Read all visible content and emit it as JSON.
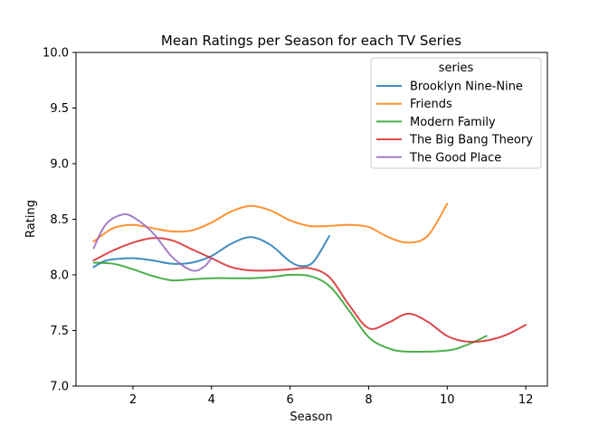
{
  "chart_data": {
    "type": "line",
    "title": "Mean Ratings per Season for each TV Series",
    "xlabel": "Season",
    "ylabel": "Rating",
    "xlim": [
      0.55,
      12.55
    ],
    "ylim": [
      7.0,
      10.0
    ],
    "xticks": [
      "2",
      "4",
      "6",
      "8",
      "10",
      "12"
    ],
    "yticks": [
      "7.0",
      "7.5",
      "8.0",
      "8.5",
      "9.0",
      "9.5",
      "10.0"
    ],
    "grid": false,
    "legend": {
      "title": "series",
      "placement": "top-right"
    },
    "series": [
      {
        "name": "Brooklyn Nine-Nine",
        "color": "#1f77b4",
        "points": [
          [
            1,
            8.07
          ],
          [
            1.25,
            8.12
          ],
          [
            1.5,
            8.14
          ],
          [
            2,
            8.15
          ],
          [
            2.5,
            8.13
          ],
          [
            3,
            8.1
          ],
          [
            3.5,
            8.11
          ],
          [
            4,
            8.17
          ],
          [
            4.5,
            8.28
          ],
          [
            5,
            8.34
          ],
          [
            5.5,
            8.27
          ],
          [
            6,
            8.12
          ],
          [
            6.3,
            8.08
          ],
          [
            6.6,
            8.12
          ],
          [
            7,
            8.35
          ]
        ]
      },
      {
        "name": "Friends",
        "color": "#ff7f0e",
        "points": [
          [
            1,
            8.3
          ],
          [
            1.5,
            8.42
          ],
          [
            2,
            8.45
          ],
          [
            2.5,
            8.42
          ],
          [
            3,
            8.39
          ],
          [
            3.5,
            8.4
          ],
          [
            4,
            8.47
          ],
          [
            4.5,
            8.57
          ],
          [
            5,
            8.62
          ],
          [
            5.5,
            8.58
          ],
          [
            6,
            8.49
          ],
          [
            6.5,
            8.44
          ],
          [
            7,
            8.44
          ],
          [
            7.5,
            8.45
          ],
          [
            8,
            8.43
          ],
          [
            8.5,
            8.34
          ],
          [
            9,
            8.29
          ],
          [
            9.5,
            8.35
          ],
          [
            10,
            8.64
          ]
        ]
      },
      {
        "name": "Modern Family",
        "color": "#2ca02c",
        "points": [
          [
            1,
            8.11
          ],
          [
            1.5,
            8.1
          ],
          [
            2,
            8.05
          ],
          [
            2.5,
            7.99
          ],
          [
            3,
            7.95
          ],
          [
            3.5,
            7.96
          ],
          [
            4,
            7.97
          ],
          [
            4.5,
            7.97
          ],
          [
            5,
            7.97
          ],
          [
            5.5,
            7.98
          ],
          [
            6,
            8.0
          ],
          [
            6.5,
            7.99
          ],
          [
            7,
            7.9
          ],
          [
            7.5,
            7.68
          ],
          [
            8,
            7.44
          ],
          [
            8.5,
            7.34
          ],
          [
            9,
            7.31
          ],
          [
            10,
            7.32
          ],
          [
            10.5,
            7.37
          ],
          [
            11,
            7.45
          ]
        ]
      },
      {
        "name": "The Big Bang Theory",
        "color": "#d62728",
        "points": [
          [
            1,
            8.13
          ],
          [
            1.5,
            8.22
          ],
          [
            2,
            8.29
          ],
          [
            2.5,
            8.33
          ],
          [
            3,
            8.31
          ],
          [
            3.5,
            8.23
          ],
          [
            4,
            8.15
          ],
          [
            4.5,
            8.07
          ],
          [
            5,
            8.04
          ],
          [
            5.5,
            8.04
          ],
          [
            6,
            8.05
          ],
          [
            6.5,
            8.06
          ],
          [
            7,
            7.98
          ],
          [
            7.5,
            7.73
          ],
          [
            8,
            7.52
          ],
          [
            8.5,
            7.57
          ],
          [
            9,
            7.65
          ],
          [
            9.5,
            7.58
          ],
          [
            10,
            7.45
          ],
          [
            10.5,
            7.4
          ],
          [
            11,
            7.41
          ],
          [
            11.5,
            7.46
          ],
          [
            12,
            7.55
          ]
        ]
      },
      {
        "name": "The Good Place",
        "color": "#9467bd",
        "points": [
          [
            1,
            8.24
          ],
          [
            1.3,
            8.45
          ],
          [
            1.7,
            8.54
          ],
          [
            2,
            8.52
          ],
          [
            2.5,
            8.38
          ],
          [
            3,
            8.16
          ],
          [
            3.5,
            8.04
          ],
          [
            3.8,
            8.07
          ],
          [
            4,
            8.15
          ]
        ]
      }
    ]
  }
}
